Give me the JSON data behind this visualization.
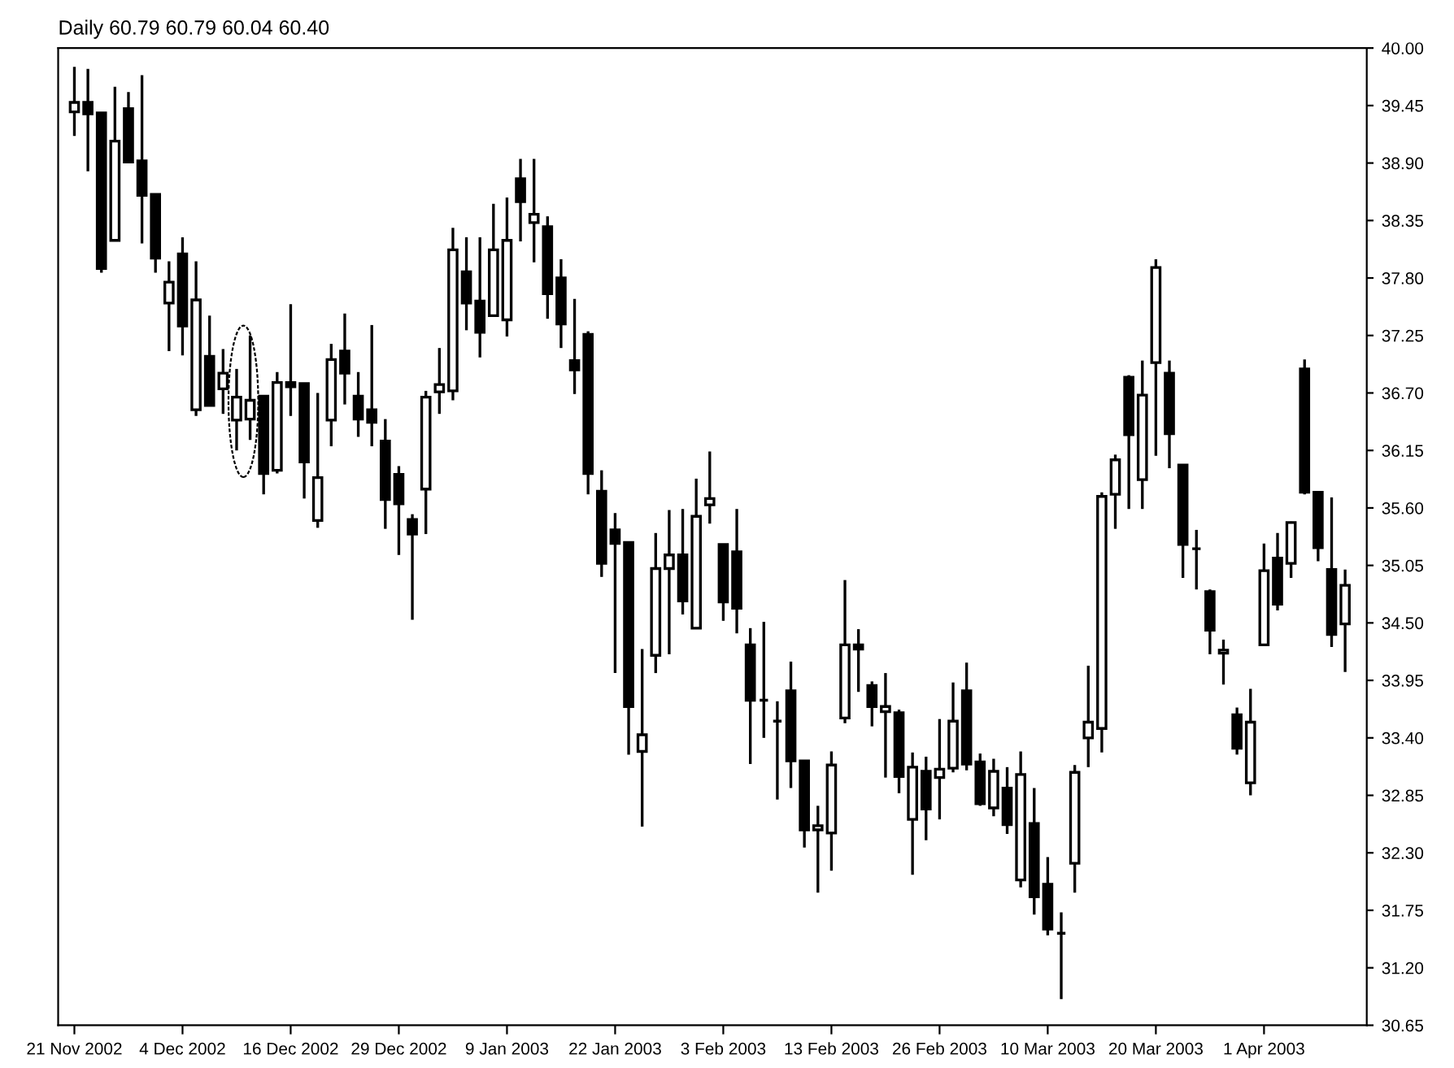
{
  "chart_data": {
    "type": "candlestick",
    "title": "Daily 60.79 60.79 60.04 60.40",
    "categories": [
      "21 Nov 2002",
      null,
      null,
      null,
      null,
      null,
      null,
      null,
      "4 Dec 2002",
      null,
      null,
      null,
      null,
      null,
      null,
      null,
      "16 Dec 2002",
      null,
      null,
      null,
      null,
      null,
      null,
      null,
      "29 Dec 2002",
      null,
      null,
      null,
      null,
      null,
      null,
      null,
      "9 Jan 2003",
      null,
      null,
      null,
      null,
      null,
      null,
      null,
      "22 Jan 2003",
      null,
      null,
      null,
      null,
      null,
      null,
      null,
      "3 Feb 2003",
      null,
      null,
      null,
      null,
      null,
      null,
      null,
      "13 Feb 2003",
      null,
      null,
      null,
      null,
      null,
      null,
      null,
      "26 Feb 2003",
      null,
      null,
      null,
      null,
      null,
      null,
      null,
      "10 Mar 2003",
      null,
      null,
      null,
      null,
      null,
      null,
      null,
      "20 Mar 2003",
      null,
      null,
      null,
      null,
      null,
      null,
      null,
      "1 Apr 2003",
      null,
      null,
      null,
      null,
      null,
      null
    ],
    "ohlc": [
      [
        39.39,
        39.82,
        39.16,
        39.48
      ],
      [
        39.48,
        39.8,
        38.82,
        39.37
      ],
      [
        39.38,
        39.38,
        37.85,
        37.89
      ],
      [
        38.16,
        39.63,
        38.15,
        39.11
      ],
      [
        39.42,
        39.58,
        38.9,
        38.91
      ],
      [
        38.92,
        39.74,
        38.13,
        38.59
      ],
      [
        38.6,
        38.6,
        37.85,
        37.99
      ],
      [
        37.56,
        37.96,
        37.1,
        37.76
      ],
      [
        38.03,
        38.19,
        37.06,
        37.34
      ],
      [
        36.54,
        37.96,
        36.48,
        37.59
      ],
      [
        37.05,
        37.44,
        36.58,
        36.58
      ],
      [
        36.74,
        37.12,
        36.5,
        36.89
      ],
      [
        36.44,
        36.93,
        36.15,
        36.66
      ],
      [
        36.45,
        37.25,
        36.25,
        36.63
      ],
      [
        36.67,
        36.67,
        35.73,
        35.93
      ],
      [
        35.96,
        36.9,
        35.93,
        36.8
      ],
      [
        36.8,
        37.55,
        36.48,
        36.76
      ],
      [
        36.79,
        36.79,
        35.69,
        36.04
      ],
      [
        35.48,
        36.7,
        35.41,
        35.89
      ],
      [
        36.44,
        37.17,
        36.19,
        37.02
      ],
      [
        37.1,
        37.46,
        36.59,
        36.89
      ],
      [
        36.67,
        36.9,
        36.28,
        36.45
      ],
      [
        36.54,
        37.35,
        36.19,
        36.42
      ],
      [
        36.24,
        36.45,
        35.4,
        35.68
      ],
      [
        35.92,
        36.0,
        35.15,
        35.64
      ],
      [
        35.49,
        35.54,
        34.53,
        35.35
      ],
      [
        35.78,
        36.72,
        35.35,
        36.66
      ],
      [
        36.71,
        37.13,
        36.5,
        36.78
      ],
      [
        36.72,
        38.28,
        36.63,
        38.07
      ],
      [
        37.86,
        38.19,
        37.3,
        37.56
      ],
      [
        37.58,
        38.19,
        37.04,
        37.28
      ],
      [
        37.44,
        38.51,
        37.44,
        38.07
      ],
      [
        37.4,
        38.57,
        37.24,
        38.16
      ],
      [
        38.75,
        38.94,
        38.15,
        38.53
      ],
      [
        38.33,
        38.94,
        37.95,
        38.41
      ],
      [
        38.29,
        38.39,
        37.41,
        37.65
      ],
      [
        37.8,
        37.98,
        37.13,
        37.36
      ],
      [
        37.01,
        37.6,
        36.69,
        36.92
      ],
      [
        37.26,
        37.29,
        35.73,
        35.93
      ],
      [
        35.76,
        35.96,
        34.94,
        35.07
      ],
      [
        35.39,
        35.55,
        34.02,
        35.26
      ],
      [
        35.27,
        35.27,
        33.24,
        33.7
      ],
      [
        33.27,
        34.25,
        32.55,
        33.43
      ],
      [
        34.19,
        35.36,
        34.02,
        35.02
      ],
      [
        35.02,
        35.58,
        34.2,
        35.15
      ],
      [
        35.15,
        35.59,
        34.58,
        34.71
      ],
      [
        34.45,
        35.88,
        34.45,
        35.52
      ],
      [
        35.63,
        36.14,
        35.45,
        35.69
      ],
      [
        35.25,
        35.25,
        34.52,
        34.7
      ],
      [
        35.18,
        35.59,
        34.4,
        34.64
      ],
      [
        34.29,
        34.45,
        33.15,
        33.76
      ],
      [
        33.76,
        34.51,
        33.4,
        33.76
      ],
      [
        33.56,
        33.75,
        32.81,
        33.56
      ],
      [
        33.85,
        34.13,
        32.92,
        33.18
      ],
      [
        33.18,
        33.18,
        32.35,
        32.52
      ],
      [
        32.52,
        32.75,
        31.92,
        32.56
      ],
      [
        32.49,
        33.27,
        32.13,
        33.14
      ],
      [
        33.59,
        34.91,
        33.54,
        34.29
      ],
      [
        34.29,
        34.44,
        33.84,
        34.25
      ],
      [
        33.9,
        33.94,
        33.51,
        33.7
      ],
      [
        33.65,
        34.02,
        33.02,
        33.7
      ],
      [
        33.64,
        33.67,
        32.87,
        33.03
      ],
      [
        32.62,
        33.26,
        32.09,
        33.12
      ],
      [
        33.08,
        33.22,
        32.42,
        32.72
      ],
      [
        33.02,
        33.58,
        32.62,
        33.1
      ],
      [
        33.11,
        33.93,
        33.07,
        33.56
      ],
      [
        33.85,
        34.12,
        33.09,
        33.15
      ],
      [
        33.17,
        33.25,
        32.75,
        32.77
      ],
      [
        32.73,
        33.2,
        32.65,
        33.08
      ],
      [
        32.92,
        33.12,
        32.48,
        32.57
      ],
      [
        32.04,
        33.27,
        31.97,
        33.05
      ],
      [
        32.58,
        32.92,
        31.71,
        31.88
      ],
      [
        32.0,
        32.26,
        31.51,
        31.57
      ],
      [
        31.53,
        31.73,
        30.9,
        31.53
      ],
      [
        32.2,
        33.14,
        31.92,
        33.07
      ],
      [
        33.4,
        34.09,
        33.12,
        33.55
      ],
      [
        33.49,
        35.75,
        33.26,
        35.71
      ],
      [
        35.73,
        36.11,
        35.4,
        36.06
      ],
      [
        36.85,
        36.87,
        35.59,
        36.3
      ],
      [
        35.87,
        37.01,
        35.59,
        36.68
      ],
      [
        36.99,
        37.98,
        36.1,
        37.9
      ],
      [
        36.89,
        37.01,
        35.98,
        36.31
      ],
      [
        36.01,
        36.01,
        34.93,
        35.25
      ],
      [
        35.21,
        35.39,
        34.82,
        35.21
      ],
      [
        34.8,
        34.82,
        34.2,
        34.43
      ],
      [
        34.21,
        34.34,
        33.91,
        34.24
      ],
      [
        33.62,
        33.69,
        33.24,
        33.3
      ],
      [
        32.97,
        33.87,
        32.85,
        33.55
      ],
      [
        34.29,
        35.26,
        34.29,
        35.0
      ],
      [
        35.12,
        35.36,
        34.62,
        34.68
      ],
      [
        35.07,
        35.47,
        34.93,
        35.46
      ],
      [
        36.93,
        37.02,
        35.73,
        35.75
      ],
      [
        35.75,
        35.75,
        35.09,
        35.22
      ],
      [
        35.01,
        35.7,
        34.27,
        34.39
      ],
      [
        34.49,
        35.01,
        34.03,
        34.86
      ]
    ],
    "ylim": [
      30.65,
      40.0
    ],
    "yticks": [
      30.65,
      {
        "value": 31.2,
        "label": "31.20"
      },
      31.75,
      {
        "value": 32.3,
        "label": "32.30"
      },
      32.85,
      {
        "value": 33.4,
        "label": "33.40"
      },
      33.95,
      {
        "value": 34.5,
        "label": "34.50"
      },
      35.05,
      {
        "value": 35.6,
        "label": "35.60"
      },
      36.15,
      {
        "value": 36.7,
        "label": "36.70"
      },
      37.25,
      {
        "value": 37.8,
        "label": "37.80"
      },
      38.35,
      {
        "value": 38.9,
        "label": "38.90"
      },
      39.45,
      {
        "value": 40,
        "label": "40.00"
      }
    ],
    "grid": false
  }
}
